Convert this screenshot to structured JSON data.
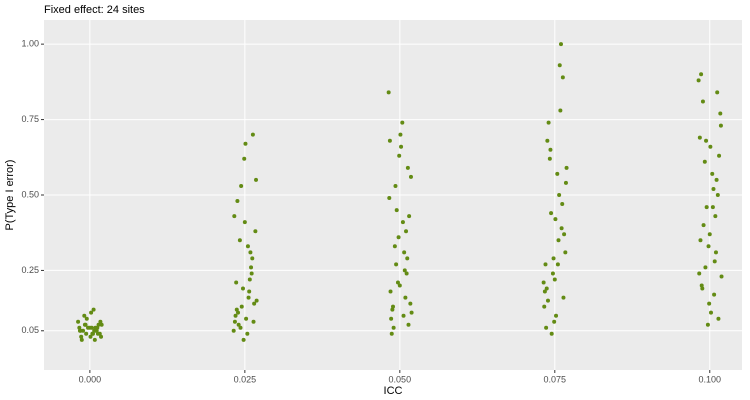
{
  "chart_data": {
    "type": "scatter",
    "title": "Fixed effect: 24 sites",
    "x_label": "ICC",
    "y_label": "P(Type I error)",
    "xlim": [
      -0.0074,
      0.1052
    ],
    "ylim": [
      -0.08,
      1.08
    ],
    "xticks": [
      {
        "value": 0,
        "label": "0.000"
      },
      {
        "value": 0.025,
        "label": "0.025"
      },
      {
        "value": 0.05,
        "label": "0.050"
      },
      {
        "value": 0.075,
        "label": "0.075"
      },
      {
        "value": 0.1,
        "label": "0.100"
      }
    ],
    "yticks": [
      0.05,
      0.25,
      {
        "value": 0.5,
        "label": "0.50"
      },
      0.75,
      {
        "value": 1.0,
        "label": "1.00"
      }
    ],
    "grid": true,
    "color": "#638b14",
    "x": [
      -0.0015,
      -0.0008,
      0.0004,
      0.0012,
      0.0018,
      -0.0019,
      -0.0011,
      0.0002,
      0.0009,
      0.0016,
      -0.0013,
      -0.0005,
      0.0007,
      0.0014,
      -0.0017,
      0.0001,
      0.001,
      -0.0009,
      0.0005,
      0.0017,
      -0.0003,
      0.0011,
      -0.0014,
      0.0006,
      -0.0007,
      0.0013,
      0.0,
      -0.0016,
      0.0008,
      0.0019,
      -0.0006,
      0.0003,
      0.0232,
      0.0238,
      0.0245,
      0.0251,
      0.0258,
      0.0264,
      0.0268,
      0.0235,
      0.0242,
      0.0249,
      0.0256,
      0.0262,
      0.0233,
      0.024,
      0.0247,
      0.0254,
      0.026,
      0.0267,
      0.0237,
      0.0244,
      0.0252,
      0.0259,
      0.0265,
      0.0236,
      0.0243,
      0.025,
      0.0257,
      0.0263,
      0.0239,
      0.0248,
      0.0261,
      0.0269,
      0.0234,
      0.0255,
      0.0482,
      0.0488,
      0.0495,
      0.0501,
      0.0508,
      0.0514,
      0.0518,
      0.0485,
      0.0492,
      0.0499,
      0.0506,
      0.0512,
      0.0483,
      0.049,
      0.0497,
      0.0504,
      0.051,
      0.0517,
      0.0487,
      0.0494,
      0.0502,
      0.0509,
      0.0515,
      0.0486,
      0.0493,
      0.05,
      0.0507,
      0.0513,
      0.0489,
      0.0498,
      0.0511,
      0.0519,
      0.0484,
      0.0505,
      0.0732,
      0.0738,
      0.0745,
      0.0751,
      0.0758,
      0.0764,
      0.0768,
      0.0735,
      0.0742,
      0.0749,
      0.0756,
      0.0762,
      0.0733,
      0.074,
      0.0747,
      0.0754,
      0.076,
      0.0767,
      0.0737,
      0.0744,
      0.0752,
      0.0759,
      0.0765,
      0.0736,
      0.0743,
      0.075,
      0.0757,
      0.0763,
      0.0739,
      0.0748,
      0.0761,
      0.0769,
      0.0734,
      0.0755,
      0.0982,
      0.0988,
      0.0995,
      0.1001,
      0.1008,
      0.1014,
      0.1018,
      0.0985,
      0.0992,
      0.0999,
      0.1006,
      0.1012,
      0.0983,
      0.099,
      0.0997,
      0.1004,
      0.101,
      0.1017,
      0.0987,
      0.0994,
      0.1002,
      0.1009,
      0.1015,
      0.0986,
      0.0993,
      0.1,
      0.1007,
      0.1013,
      0.0989,
      0.0998,
      0.1011,
      0.1019,
      0.0984,
      0.1005
    ],
    "y": [
      0.05,
      0.07,
      0.04,
      0.06,
      0.03,
      0.08,
      0.05,
      0.11,
      0.06,
      0.04,
      0.02,
      0.09,
      0.05,
      0.07,
      0.06,
      0.03,
      0.05,
      0.1,
      0.04,
      0.08,
      0.06,
      0.05,
      0.03,
      0.12,
      0.07,
      0.04,
      0.06,
      0.05,
      0.02,
      0.07,
      0.04,
      0.06,
      0.05,
      0.48,
      0.13,
      0.67,
      0.22,
      0.08,
      0.55,
      0.1,
      0.35,
      0.62,
      0.16,
      0.29,
      0.43,
      0.07,
      0.19,
      0.04,
      0.26,
      0.38,
      0.12,
      0.53,
      0.09,
      0.31,
      0.14,
      0.21,
      0.06,
      0.41,
      0.18,
      0.7,
      0.11,
      0.02,
      0.24,
      0.15,
      0.08,
      0.33,
      0.84,
      0.12,
      0.45,
      0.7,
      0.25,
      0.07,
      0.56,
      0.18,
      0.33,
      0.63,
      0.1,
      0.29,
      0.49,
      0.06,
      0.21,
      0.74,
      0.38,
      0.14,
      0.04,
      0.27,
      0.66,
      0.16,
      0.43,
      0.09,
      0.53,
      0.2,
      0.31,
      0.59,
      0.13,
      0.36,
      0.24,
      0.11,
      0.68,
      0.41,
      0.21,
      0.68,
      0.04,
      0.42,
      0.93,
      0.16,
      0.54,
      0.27,
      0.62,
      0.08,
      0.35,
      0.47,
      0.13,
      0.74,
      0.24,
      0.57,
      1.0,
      0.31,
      0.19,
      0.44,
      0.1,
      0.78,
      0.37,
      0.06,
      0.65,
      0.22,
      0.5,
      0.89,
      0.15,
      0.29,
      0.39,
      0.59,
      0.18,
      0.27,
      0.88,
      0.19,
      0.46,
      0.66,
      0.28,
      0.09,
      0.73,
      0.35,
      0.61,
      0.14,
      0.52,
      0.84,
      0.24,
      0.4,
      0.07,
      0.57,
      0.31,
      0.77,
      0.2,
      0.68,
      0.11,
      0.43,
      0.63,
      0.9,
      0.26,
      0.37,
      0.17,
      0.5,
      0.81,
      0.33,
      0.55,
      0.23,
      0.69,
      0.46
    ]
  }
}
